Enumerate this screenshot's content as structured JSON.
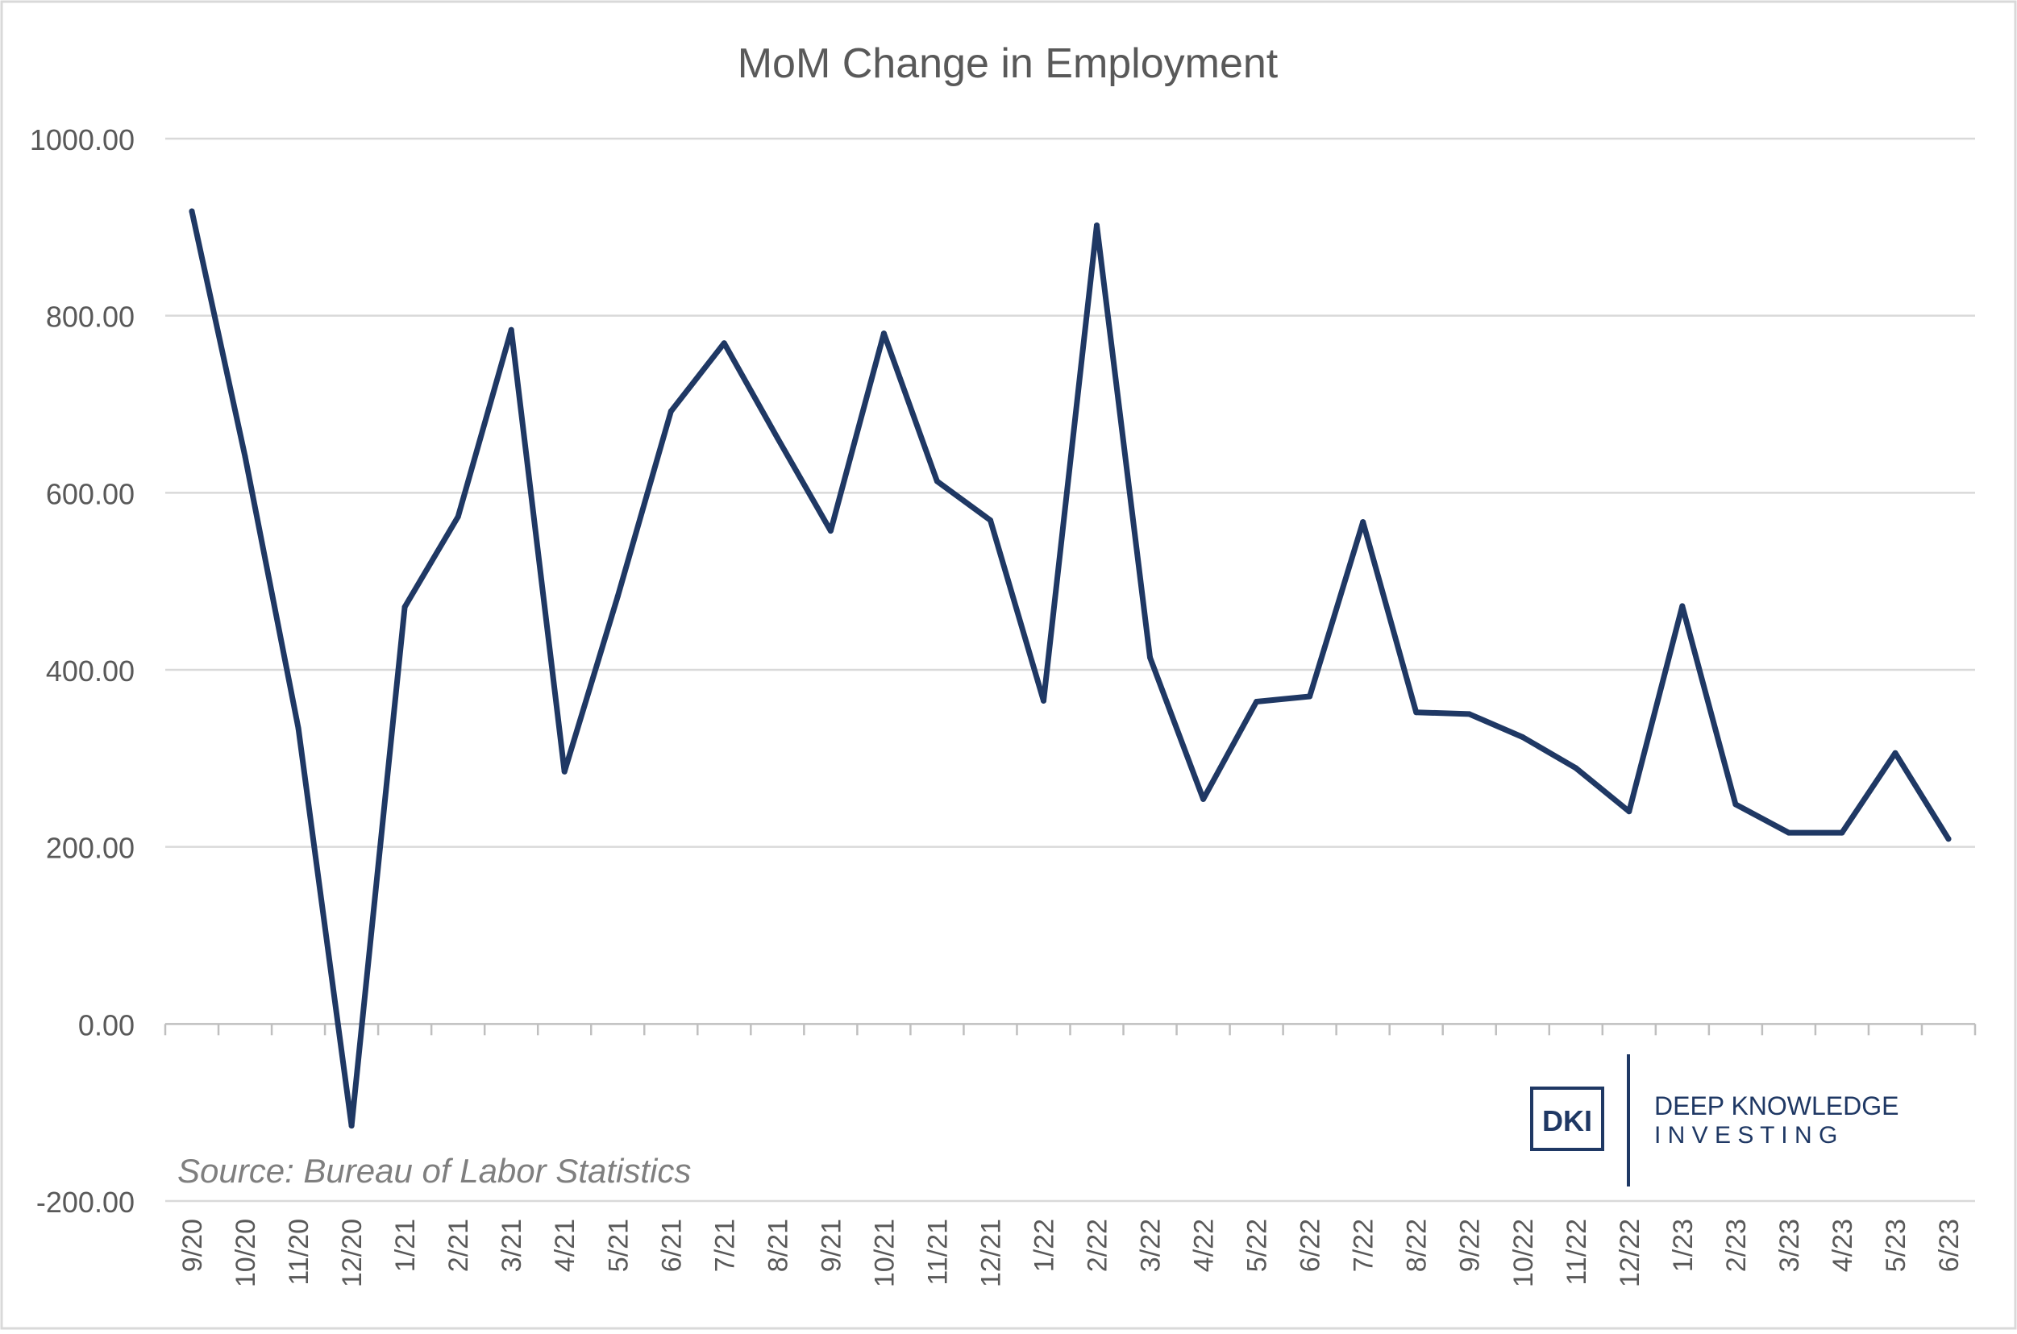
{
  "chart_data": {
    "type": "line",
    "title": "MoM Change in Employment",
    "xlabel": "",
    "ylabel": "",
    "categories": [
      "9/20",
      "10/20",
      "11/20",
      "12/20",
      "1/21",
      "2/21",
      "3/21",
      "4/21",
      "5/21",
      "6/21",
      "7/21",
      "8/21",
      "9/21",
      "10/21",
      "11/21",
      "12/21",
      "1/22",
      "2/22",
      "3/22",
      "4/22",
      "5/22",
      "6/22",
      "7/22",
      "8/22",
      "9/22",
      "10/22",
      "11/22",
      "12/22",
      "1/23",
      "2/23",
      "3/23",
      "4/23",
      "5/23",
      "6/23"
    ],
    "series": [
      {
        "values": [
          918,
          641,
          334,
          -115,
          471,
          573,
          784,
          285,
          483,
          692,
          769,
          662,
          557,
          780,
          613,
          569,
          365,
          902,
          414,
          254,
          364,
          370,
          567,
          352,
          350,
          324,
          289,
          240,
          472,
          248,
          216,
          216,
          306,
          209
        ]
      }
    ],
    "ylim": [
      -200,
      1000
    ],
    "yticks": [
      -200,
      0,
      200,
      400,
      600,
      800,
      1000
    ],
    "ytick_labels": [
      "-200.00",
      "0.00",
      "200.00",
      "400.00",
      "600.00",
      "800.00",
      "1000.00"
    ],
    "grid": true,
    "legend": "none",
    "line_color": "#1f3864",
    "annotation": "Source: Bureau of Labor Statistics"
  },
  "logo": {
    "mark": "DKI",
    "line1": "DEEP KNOWLEDGE",
    "line2": "I N V E S T I N G",
    "color": "#1f3864"
  }
}
